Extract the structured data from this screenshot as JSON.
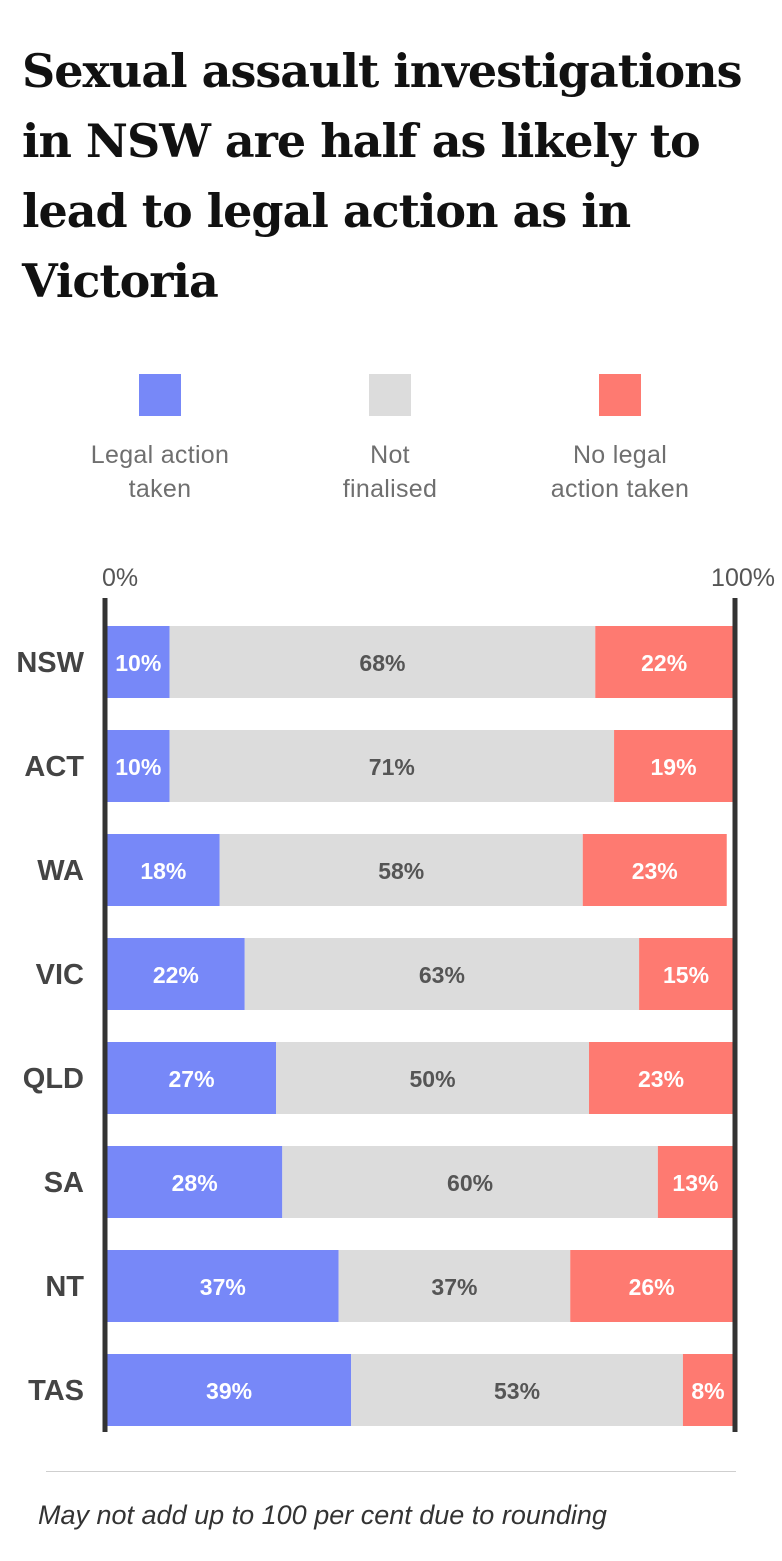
{
  "title": "Sexual assault investigations in NSW are half as likely to lead to legal action as in Victoria",
  "legend": [
    {
      "label_line1": "Legal action",
      "label_line2": "taken",
      "color": "#7788f8"
    },
    {
      "label_line1": "Not",
      "label_line2": "finalised",
      "color": "#dcdcdc"
    },
    {
      "label_line1": "No legal",
      "label_line2": "action taken",
      "color": "#fe7a71"
    }
  ],
  "footnote": "May not add up to 100 per cent due to rounding",
  "chart_data": {
    "type": "bar",
    "orientation": "horizontal",
    "stacked": true,
    "axis_min_label": "0%",
    "axis_max_label": "100%",
    "xlim": [
      0,
      100
    ],
    "categories": [
      "NSW",
      "ACT",
      "WA",
      "VIC",
      "QLD",
      "SA",
      "NT",
      "TAS"
    ],
    "series": [
      {
        "name": "Legal action taken",
        "color": "#7788f8",
        "label_color": "#ffffff",
        "values": [
          10,
          10,
          18,
          22,
          27,
          28,
          37,
          39
        ]
      },
      {
        "name": "Not finalised",
        "color": "#dcdcdc",
        "label_color": "#555555",
        "values": [
          68,
          71,
          58,
          63,
          50,
          60,
          37,
          53
        ]
      },
      {
        "name": "No legal action taken",
        "color": "#fe7a71",
        "label_color": "#ffffff",
        "values": [
          22,
          19,
          23,
          15,
          23,
          13,
          26,
          8
        ]
      }
    ],
    "grid": false
  }
}
